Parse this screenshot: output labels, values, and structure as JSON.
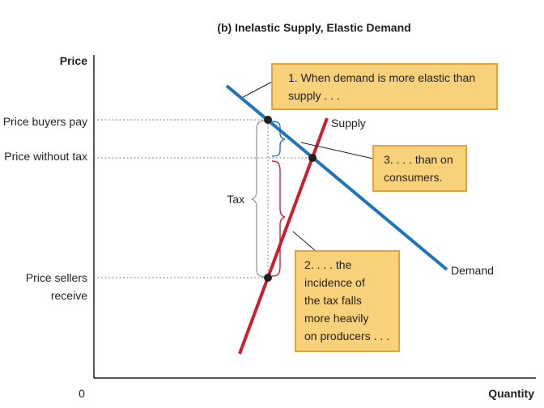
{
  "title": "(b) Inelastic Supply, Elastic Demand",
  "axes": {
    "y_label": "Price",
    "x_label": "Quantity",
    "origin": "0"
  },
  "price_labels": {
    "buyers": "Price buyers pay",
    "without_tax": "Price without tax",
    "sellers_line1": "Price sellers",
    "sellers_line2": "receive"
  },
  "curve_labels": {
    "supply": "Supply",
    "demand": "Demand"
  },
  "tax_label": "Tax",
  "callouts": {
    "one": [
      "1. When demand is more elastic than",
      "supply . . ."
    ],
    "two": [
      "2. . . . the",
      "incidence of",
      "the tax falls",
      "more heavily",
      "on producers . . ."
    ],
    "three": [
      "3. . . . than on",
      "consumers."
    ]
  },
  "colors": {
    "supply": "#c8202f",
    "demand": "#1f75bc",
    "callout_fill": "#f7d27a",
    "callout_border": "#e3a33a",
    "axis": "#231f20",
    "dotted": "#9a9a9a"
  }
}
